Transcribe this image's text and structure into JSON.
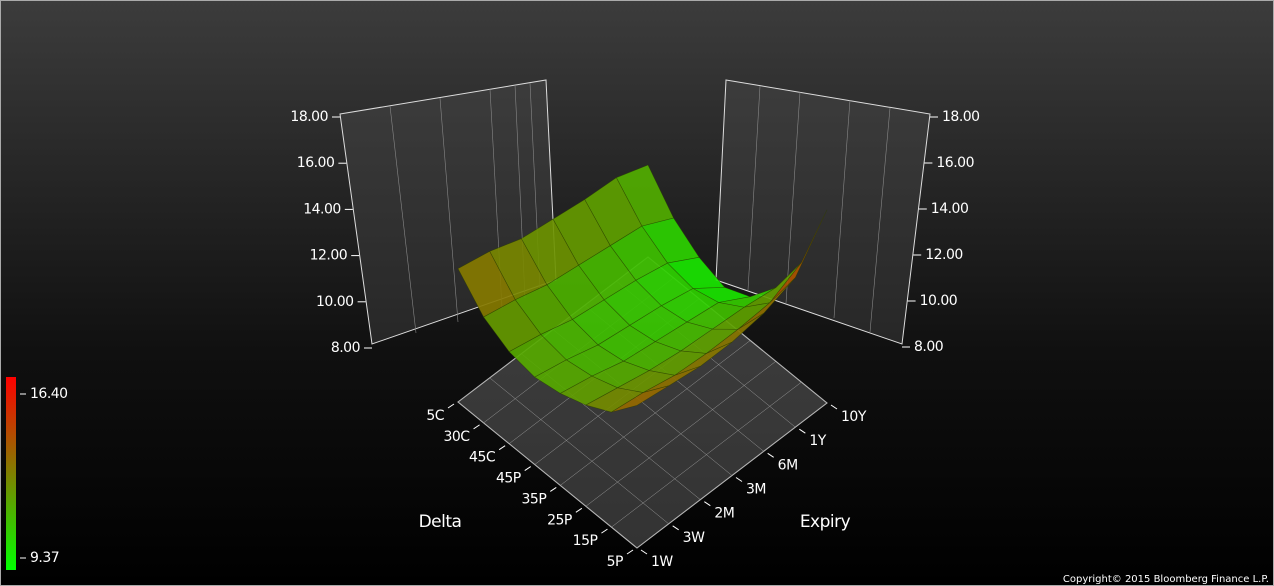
{
  "chart_data": {
    "type": "surface",
    "x_label": "Delta",
    "y_label": "Expiry",
    "x_categories": [
      "5C",
      "30C",
      "45C",
      "45P",
      "35P",
      "25P",
      "15P",
      "5P"
    ],
    "y_categories": [
      "1W",
      "3W",
      "2M",
      "3M",
      "6M",
      "1Y",
      "10Y"
    ],
    "z": [
      [
        13.8,
        12.6,
        12.0,
        11.8,
        12.0,
        12.4,
        13.0,
        14.2
      ],
      [
        13.5,
        12.3,
        11.7,
        11.5,
        11.7,
        12.1,
        12.8,
        14.0
      ],
      [
        13.0,
        11.9,
        11.3,
        11.1,
        11.3,
        11.8,
        12.5,
        13.8
      ],
      [
        12.8,
        11.7,
        11.1,
        10.9,
        11.1,
        11.6,
        12.4,
        13.8
      ],
      [
        12.6,
        11.5,
        10.9,
        10.7,
        10.9,
        11.5,
        12.4,
        14.0
      ],
      [
        12.5,
        11.3,
        10.6,
        10.4,
        10.7,
        11.4,
        12.5,
        14.5
      ],
      [
        12.0,
        10.6,
        9.8,
        9.4,
        9.9,
        11.2,
        13.2,
        16.4
      ]
    ],
    "zlim": [
      8,
      18
    ],
    "zticks": [
      {
        "value": 8,
        "label": "8.00"
      },
      {
        "value": 10,
        "label": "10.00"
      },
      {
        "value": 12,
        "label": "12.00"
      },
      {
        "value": 14,
        "label": "14.00"
      },
      {
        "value": 16,
        "label": "16.00"
      },
      {
        "value": 18,
        "label": "18.00"
      }
    ],
    "colorbar_ticks": [
      {
        "value": 16.4,
        "label": "16.40"
      },
      {
        "value": 9.37,
        "label": "9.37"
      }
    ],
    "color_low": "#00ff00",
    "color_high": "#ff0000",
    "copyright": "Copyright© 2015 Bloomberg Finance L.P."
  }
}
